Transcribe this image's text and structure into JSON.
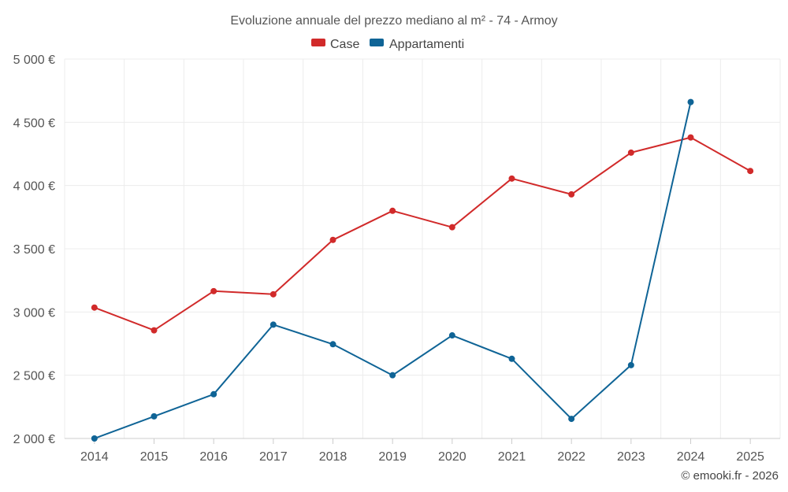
{
  "chart_data": {
    "type": "line",
    "title": "Evoluzione annuale del prezzo mediano al m² - 74 - Armoy",
    "x": [
      "2014",
      "2015",
      "2016",
      "2017",
      "2018",
      "2019",
      "2020",
      "2021",
      "2022",
      "2023",
      "2024",
      "2025"
    ],
    "series": [
      {
        "name": "Case",
        "color": "#d12a2a",
        "values": [
          3035,
          2855,
          3165,
          3140,
          3570,
          3800,
          3670,
          4055,
          3930,
          4260,
          4380,
          4115
        ]
      },
      {
        "name": "Appartamenti",
        "color": "#0f6496",
        "values": [
          2000,
          2175,
          2350,
          2900,
          2745,
          2500,
          2815,
          2630,
          2155,
          2580,
          4660,
          null
        ]
      }
    ],
    "ylim": [
      2000,
      5000
    ],
    "yticks": [
      2000,
      2500,
      3000,
      3500,
      4000,
      4500,
      5000
    ],
    "ytick_labels": [
      "2 000 €",
      "2 500 €",
      "3 000 €",
      "3 500 €",
      "4 000 €",
      "4 500 €",
      "5 000 €"
    ],
    "legend_position": "top-center",
    "grid": true,
    "credit": "© emooki.fr - 2026"
  }
}
